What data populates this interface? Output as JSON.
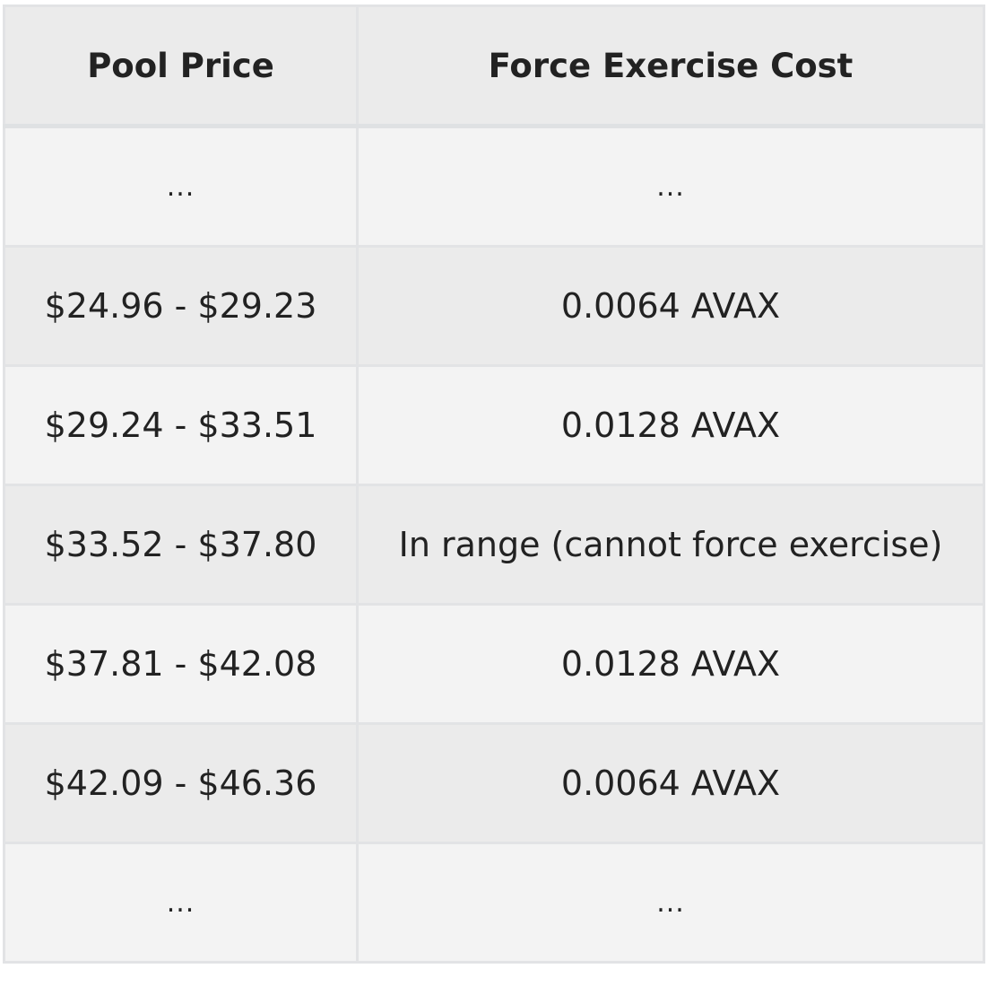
{
  "table": {
    "headers": [
      "Pool Price",
      "Force Exercise Cost"
    ],
    "rows": [
      [
        "...",
        "..."
      ],
      [
        "$24.96 - $29.23",
        "0.0064 AVAX"
      ],
      [
        "$29.24 - $33.51",
        "0.0128 AVAX"
      ],
      [
        "$33.52 - $37.80",
        "In range (cannot force exercise)"
      ],
      [
        "$37.81 - $42.08",
        "0.0128 AVAX"
      ],
      [
        "$42.09 - $46.36",
        "0.0064 AVAX"
      ],
      [
        "...",
        "..."
      ]
    ]
  },
  "colors": {
    "header_bg": "#ebebeb",
    "row_light": "#f3f3f3",
    "row_dark": "#ebebeb",
    "border": "#e2e3e5",
    "text": "#222222"
  }
}
